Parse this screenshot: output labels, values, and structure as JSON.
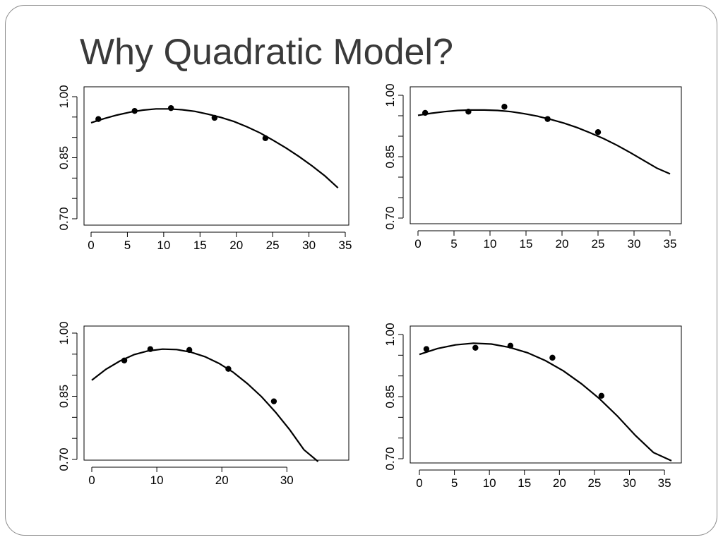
{
  "slide": {
    "title": "Why Quadratic Model?"
  },
  "chart_data": [
    {
      "type": "scatter",
      "xlim": [
        0,
        35
      ],
      "ylim": [
        0.7,
        1.0
      ],
      "xticks": [
        0,
        5,
        10,
        15,
        20,
        25,
        30,
        35
      ],
      "yticks": [
        "0.70",
        "0.85",
        "1.00"
      ],
      "points": {
        "x": [
          1,
          6,
          11,
          17,
          24
        ],
        "y": [
          0.945,
          0.965,
          0.972,
          0.948,
          0.898
        ]
      },
      "fit": {
        "x_range": [
          0,
          34
        ],
        "y": [
          0.936,
          0.946,
          0.955,
          0.962,
          0.967,
          0.97,
          0.97,
          0.968,
          0.964,
          0.957,
          0.949,
          0.939,
          0.926,
          0.911,
          0.893,
          0.874,
          0.853,
          0.83,
          0.805,
          0.776
        ]
      }
    },
    {
      "type": "scatter",
      "xlim": [
        0,
        35
      ],
      "ylim": [
        0.7,
        1.0
      ],
      "xticks": [
        0,
        5,
        10,
        15,
        20,
        25,
        30,
        35
      ],
      "yticks": [
        "0.70",
        "0.85",
        "1.00"
      ],
      "points": {
        "x": [
          1,
          7,
          12,
          18,
          25
        ],
        "y": [
          0.957,
          0.96,
          0.972,
          0.942,
          0.91
        ]
      },
      "fit": {
        "x_range": [
          0,
          35
        ],
        "y": [
          0.951,
          0.956,
          0.96,
          0.963,
          0.964,
          0.964,
          0.963,
          0.96,
          0.955,
          0.949,
          0.941,
          0.932,
          0.921,
          0.908,
          0.894,
          0.878,
          0.86,
          0.841,
          0.822,
          0.808
        ]
      }
    },
    {
      "type": "scatter",
      "xlim": [
        0,
        38
      ],
      "ylim": [
        0.7,
        1.0
      ],
      "xticks": [
        0,
        10,
        20,
        30
      ],
      "yticks": [
        "0.70",
        "0.85",
        "1.00"
      ],
      "points": {
        "x": [
          5,
          9,
          15,
          21,
          28
        ],
        "y": [
          0.935,
          0.962,
          0.96,
          0.915,
          0.838
        ]
      },
      "fit": {
        "x_range": [
          0,
          34.8
        ],
        "y": [
          0.888,
          0.914,
          0.934,
          0.949,
          0.958,
          0.962,
          0.961,
          0.955,
          0.944,
          0.928,
          0.907,
          0.88,
          0.849,
          0.812,
          0.77,
          0.723,
          0.695
        ]
      }
    },
    {
      "type": "scatter",
      "xlim": [
        0,
        36
      ],
      "ylim": [
        0.7,
        1.0
      ],
      "xticks": [
        0,
        5,
        10,
        15,
        20,
        25,
        30,
        35
      ],
      "yticks": [
        "0.70",
        "0.85",
        "1.00"
      ],
      "points": {
        "x": [
          1,
          8,
          13,
          19,
          26
        ],
        "y": [
          0.965,
          0.968,
          0.973,
          0.944,
          0.852
        ]
      },
      "fit": {
        "x_range": [
          0,
          36
        ],
        "y": [
          0.952,
          0.966,
          0.975,
          0.979,
          0.977,
          0.969,
          0.956,
          0.937,
          0.912,
          0.881,
          0.845,
          0.803,
          0.756,
          0.715,
          0.695
        ]
      }
    }
  ]
}
